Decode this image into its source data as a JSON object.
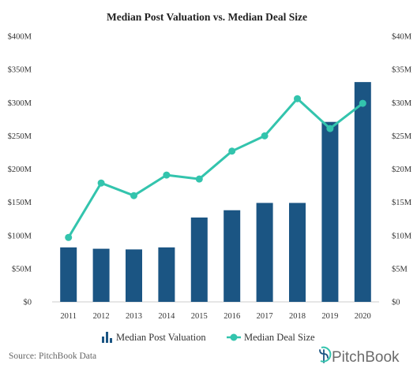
{
  "chart_data": {
    "type": "bar",
    "title": "Median Post Valuation vs. Median Deal Size",
    "categories": [
      "2011",
      "2012",
      "2013",
      "2014",
      "2015",
      "2016",
      "2017",
      "2018",
      "2019",
      "2020"
    ],
    "series": [
      {
        "name": "Median Post Valuation",
        "type": "bar",
        "axis": "left",
        "color": "#1b5583",
        "values": [
          82,
          80,
          79,
          82,
          127,
          138,
          149,
          149,
          271,
          331
        ]
      },
      {
        "name": "Median Deal Size",
        "type": "line",
        "axis": "right",
        "color": "#33c4ad",
        "values": [
          9.7,
          17.9,
          16.0,
          19.1,
          18.5,
          22.7,
          25.0,
          30.6,
          26.1,
          29.9
        ]
      }
    ],
    "y_left": {
      "ylim": [
        0,
        400
      ],
      "ticks": [
        0,
        50,
        100,
        150,
        200,
        250,
        300,
        350,
        400
      ],
      "tick_labels": [
        "$0",
        "$50M",
        "$100M",
        "$150M",
        "$200M",
        "$250M",
        "$300M",
        "$350M",
        "$400M"
      ]
    },
    "y_right": {
      "ylim": [
        0,
        40
      ],
      "ticks": [
        0,
        5,
        10,
        15,
        20,
        25,
        30,
        35,
        40
      ],
      "tick_labels": [
        "$0",
        "$5M",
        "$10M",
        "$15M",
        "$20M",
        "$25M",
        "$30M",
        "$35M",
        "$40M"
      ]
    },
    "grid": false,
    "legend_position": "bottom-center"
  },
  "legend": {
    "bar_label": "Median Post Valuation",
    "line_label": "Median Deal Size",
    "bar_icon": "bar-chart-icon",
    "line_icon": "line-marker-icon"
  },
  "footer": {
    "source": "Source: PitchBook Data",
    "brand": "PitchBook",
    "brand_icon": "pitchbook-logo-icon"
  }
}
